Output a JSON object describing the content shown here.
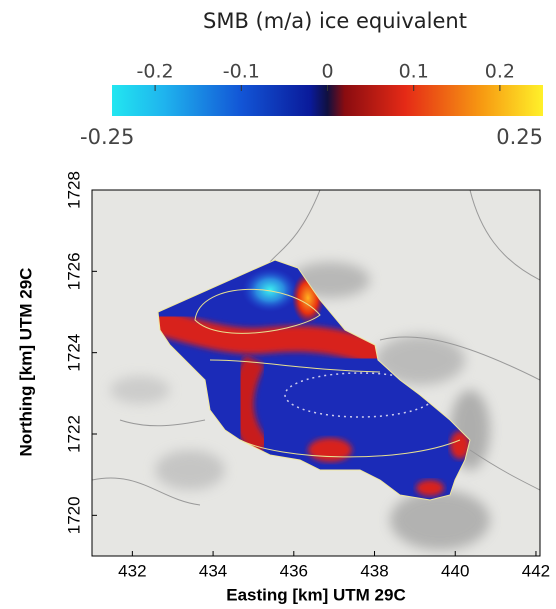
{
  "colorbar": {
    "title": "SMB (m/a) ice equivalent",
    "ticks": [
      -0.2,
      -0.1,
      0,
      0.1,
      0.2
    ],
    "range": [
      -0.25,
      0.25
    ]
  },
  "axes": {
    "xlabel": "Easting [km] UTM 29C",
    "ylabel": "Northing [km] UTM 29C",
    "xlim": [
      431,
      442.1
    ],
    "ylim": [
      1719,
      1728
    ],
    "xticks": [
      432,
      434,
      436,
      438,
      440,
      442
    ],
    "yticks": [
      1720,
      1722,
      1724,
      1726,
      1728
    ]
  }
}
